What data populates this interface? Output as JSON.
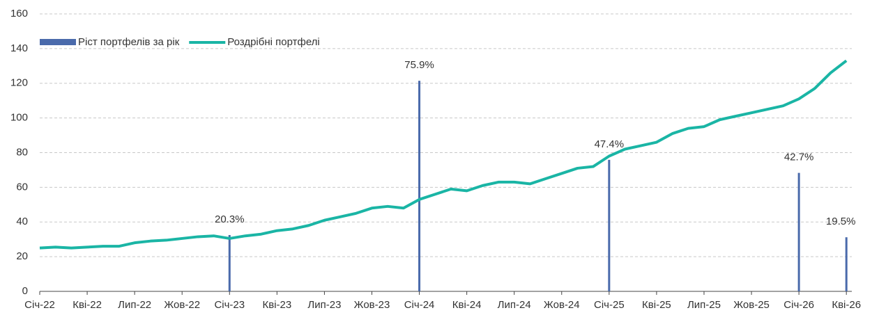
{
  "chart_data": {
    "type": "combo",
    "categories": [
      "Січ-22",
      null,
      null,
      "Кві-22",
      null,
      null,
      "Лип-22",
      null,
      null,
      "Жов-22",
      null,
      null,
      "Січ-23",
      null,
      null,
      "Кві-23",
      null,
      null,
      "Лип-23",
      null,
      null,
      "Жов-23",
      null,
      null,
      "Січ-24",
      null,
      null,
      "Кві-24",
      null,
      null,
      "Лип-24",
      null,
      null,
      "Жов-24",
      null,
      null,
      "Січ-25",
      null,
      null,
      "Кві-25",
      null,
      null,
      "Лип-25",
      null,
      null,
      "Жов-25",
      null,
      null,
      "Січ-26",
      null,
      null,
      "Кві-26"
    ],
    "series": [
      {
        "name": "Ріст портфелів за рік",
        "type": "bar",
        "axis": "y2",
        "color": "#4a6aab",
        "values": [
          null,
          null,
          null,
          null,
          null,
          null,
          null,
          null,
          null,
          null,
          null,
          null,
          20.3,
          null,
          null,
          null,
          null,
          null,
          null,
          null,
          null,
          null,
          null,
          null,
          75.9,
          null,
          null,
          null,
          null,
          null,
          null,
          null,
          null,
          null,
          null,
          null,
          47.4,
          null,
          null,
          null,
          null,
          null,
          null,
          null,
          null,
          null,
          null,
          null,
          42.7,
          null,
          null,
          19.5
        ],
        "value_labels": [
          null,
          null,
          null,
          null,
          null,
          null,
          null,
          null,
          null,
          null,
          null,
          null,
          "20.3%",
          null,
          null,
          null,
          null,
          null,
          null,
          null,
          null,
          null,
          null,
          null,
          "75.9%",
          null,
          null,
          null,
          null,
          null,
          null,
          null,
          null,
          null,
          null,
          null,
          "47.4%",
          null,
          null,
          null,
          null,
          null,
          null,
          null,
          null,
          null,
          null,
          null,
          "42.7%",
          null,
          null,
          "19.5%"
        ]
      },
      {
        "name": "Роздрібні портфелі",
        "type": "line",
        "color": "#1ab5a5",
        "values": [
          25,
          25.5,
          25,
          25.5,
          26,
          26,
          28,
          29,
          29.5,
          30.5,
          31.5,
          32,
          30.5,
          32,
          33,
          35,
          36,
          38,
          41,
          43,
          45,
          48,
          49,
          48,
          53,
          56,
          59,
          58,
          61,
          63,
          63,
          62,
          65,
          68,
          71,
          72,
          78,
          82,
          84,
          86,
          91,
          94,
          95,
          99,
          101,
          103,
          105,
          107,
          111,
          117,
          126,
          133
        ]
      }
    ],
    "ylim": [
      0,
      160
    ],
    "yticks": [
      0,
      20,
      40,
      60,
      80,
      100,
      120,
      140,
      160
    ],
    "y2lim": [
      0,
      100
    ],
    "grid": true,
    "legend": "top-left"
  }
}
